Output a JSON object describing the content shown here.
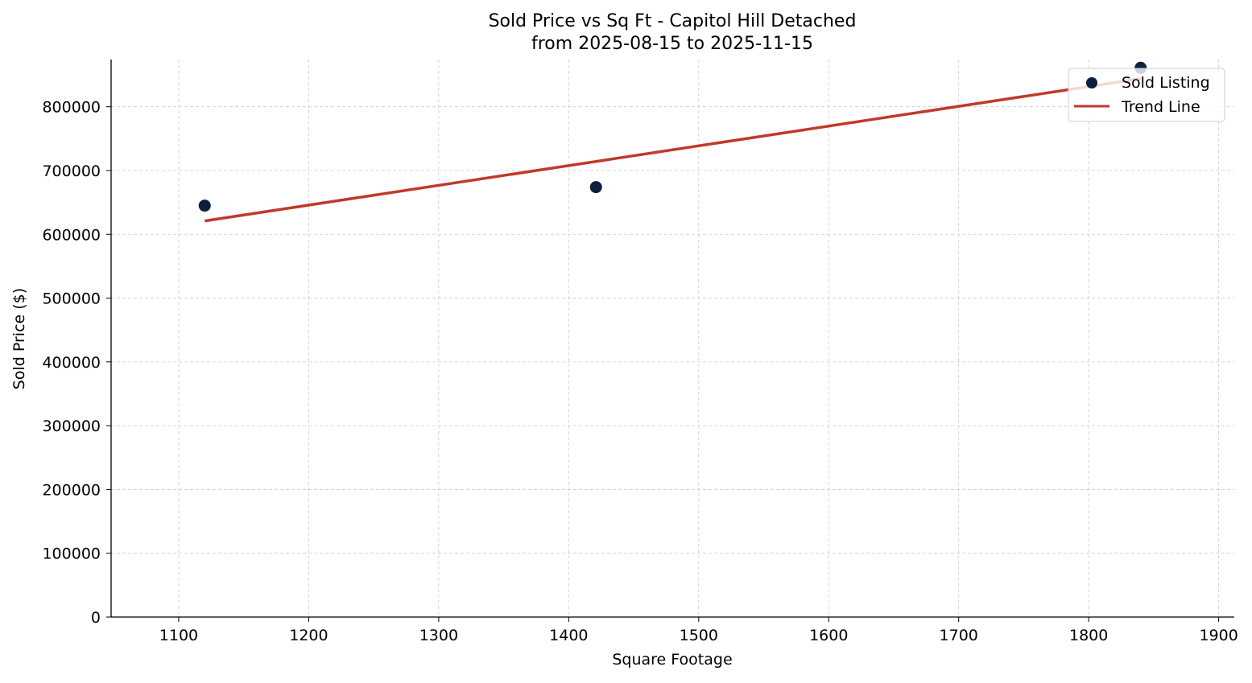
{
  "chart_data": {
    "type": "scatter",
    "title": "Sold Price vs Sq Ft - Capitol Hill Detached",
    "subtitle": "from 2025-08-15 to 2025-11-15",
    "xlabel": "Square Footage",
    "ylabel": "Sold Price ($)",
    "xlim": [
      1048,
      1912
    ],
    "ylim": [
      0,
      874000
    ],
    "xticks": [
      1100,
      1200,
      1300,
      1400,
      1500,
      1600,
      1700,
      1800,
      1900
    ],
    "yticks": [
      0,
      100000,
      200000,
      300000,
      400000,
      500000,
      600000,
      700000,
      800000
    ],
    "grid": true,
    "legend_position": "top-right",
    "series": [
      {
        "name": "Sold Listing",
        "kind": "scatter",
        "color": "#0b1f3f",
        "points": [
          {
            "x": 1120,
            "y": 645000
          },
          {
            "x": 1421,
            "y": 674000
          },
          {
            "x": 1840,
            "y": 861000
          }
        ]
      },
      {
        "name": "Trend Line",
        "kind": "line",
        "color": "#c0392b",
        "points": [
          {
            "x": 1120,
            "y": 621000
          },
          {
            "x": 1840,
            "y": 844000
          }
        ]
      }
    ]
  }
}
